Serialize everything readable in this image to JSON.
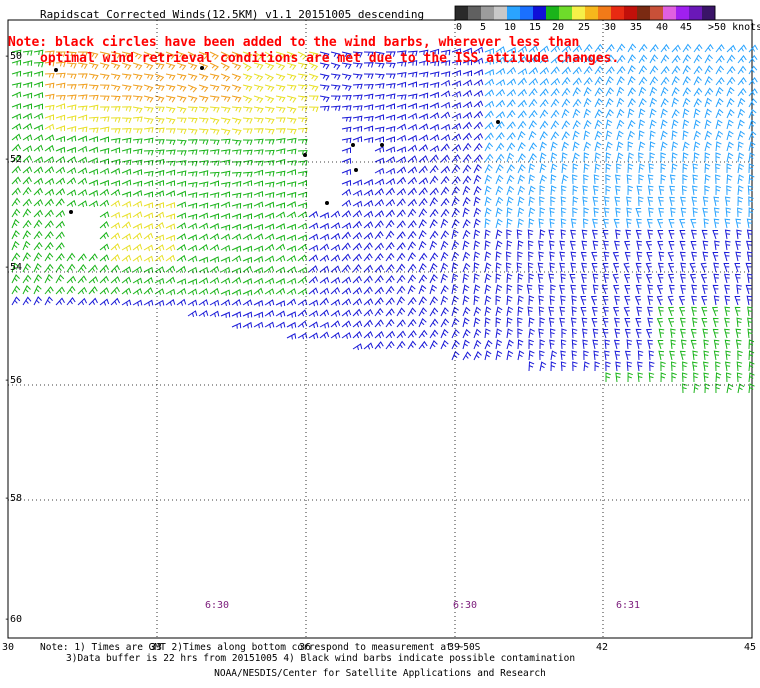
{
  "header": {
    "title": "Rapidscat Corrected Winds(12.5KM) v1.1 20151005 descending",
    "note_line1": "Note: black circles have been added to the wind barbs, wherever less than",
    "note_line2": "optimal wind retrieval conditions are met due to the ISS attitude changes."
  },
  "colorbar": {
    "colors": [
      "#2a2a2a",
      "#606060",
      "#9c9c9c",
      "#c8c8c8",
      "#2aa4ff",
      "#1a70ff",
      "#1010d8",
      "#1ab41a",
      "#6edc2a",
      "#f6f048",
      "#f6b81c",
      "#f27a18",
      "#e82a12",
      "#c2100a",
      "#7a2a12",
      "#c85038",
      "#e060e0",
      "#a020f0",
      "#6a18b8",
      "#3a1468"
    ],
    "labels": [
      "0",
      "5",
      "10",
      "15",
      "20",
      "25",
      "30",
      "35",
      "40",
      "45",
      ">50 knots"
    ]
  },
  "axes": {
    "y_labels": [
      "-50",
      "-52",
      "-54",
      "-56",
      "-58",
      "-60"
    ],
    "x_labels": [
      "30",
      "33",
      "36",
      "39",
      "42",
      "45"
    ]
  },
  "pass_times": [
    "6:30",
    "6:30",
    "6:31"
  ],
  "footer": {
    "note1": "Note: 1) Times are GMT 2)Times along bottom correspond to measurement at ~50S",
    "note2": "3)Data buffer is 22 hrs from 20151005 4) Black wind barbs indicate possible contamination",
    "credit": "NOAA/NESDIS/Center for Satellite Applications and Research"
  },
  "map_colors": {
    "speed_0_5": "#c0c0c0",
    "speed_5_10": "#2aa4ff",
    "speed_10_15": "#1a1ad8",
    "speed_15_20": "#1ab41a",
    "speed_20_25": "#e8e028",
    "speed_25_30": "#f0a020",
    "contaminated": "#000000",
    "note": "#ff0000",
    "pass_time": "#7a1a7a"
  }
}
